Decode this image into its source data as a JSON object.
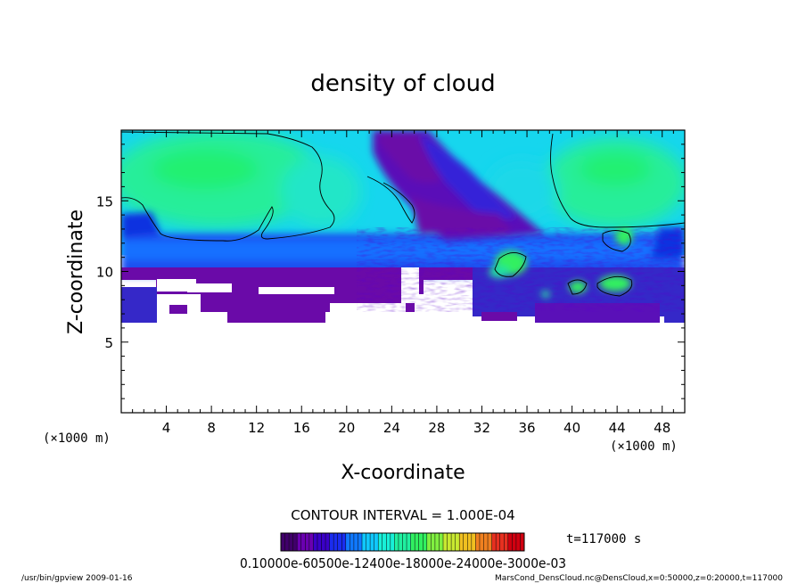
{
  "chart_data": {
    "type": "heatmap",
    "title": "density of cloud",
    "xlabel": "X-coordinate",
    "ylabel": "Z-coordinate",
    "x_unit_left": "(×1000 m)",
    "x_unit_right": "(×1000 m)",
    "xlim": [
      0,
      50
    ],
    "ylim": [
      0,
      20
    ],
    "x_ticks": [
      4,
      8,
      12,
      16,
      20,
      24,
      28,
      32,
      36,
      40,
      44,
      48
    ],
    "y_ticks": [
      5,
      10,
      15
    ],
    "contour_interval": "CONTOUR INTERVAL = 1.000E-04",
    "time_label": "t=117000 s",
    "colorbar_labels": "0.10000e-60500e-12400e-18000e-24000e-3000e-03",
    "colorbar_colors": [
      "#40006a",
      "#6a00b0",
      "#3a00c8",
      "#1a2cf0",
      "#1078ff",
      "#10c8ff",
      "#18f0d8",
      "#20f0a0",
      "#30f060",
      "#80f040",
      "#c8e830",
      "#f0c020",
      "#f08020",
      "#e83020",
      "#d00010"
    ],
    "regions": [
      {
        "name": "upper-left-green-cell",
        "x": [
          1,
          19
        ],
        "z": [
          14,
          19.5
        ],
        "level": "high"
      },
      {
        "name": "upper-right-green-cell",
        "x": [
          38,
          49.5
        ],
        "z": [
          14,
          19.5
        ],
        "level": "high"
      },
      {
        "name": "upper-cyan-layer",
        "x": [
          0,
          50
        ],
        "z": [
          13,
          20
        ],
        "level": "medium"
      },
      {
        "name": "central-purple-plume",
        "x": [
          22,
          32
        ],
        "z": [
          11,
          20
        ],
        "level": "low"
      },
      {
        "name": "blue-band",
        "x": [
          0,
          50
        ],
        "z": [
          10,
          13
        ],
        "level": "medium-low"
      },
      {
        "name": "lower-purple-band",
        "x": [
          0,
          50
        ],
        "z": [
          6.5,
          10
        ],
        "level": "low"
      },
      {
        "name": "green-blobs",
        "x": [
          33,
          46
        ],
        "z": [
          9,
          12.5
        ],
        "level": "high"
      }
    ]
  },
  "footer": {
    "program": "/usr/bin/gpview  2009-01-16",
    "source": "MarsCond_DensCloud.nc@DensCloud,x=0:50000,z=0:20000,t=117000"
  }
}
